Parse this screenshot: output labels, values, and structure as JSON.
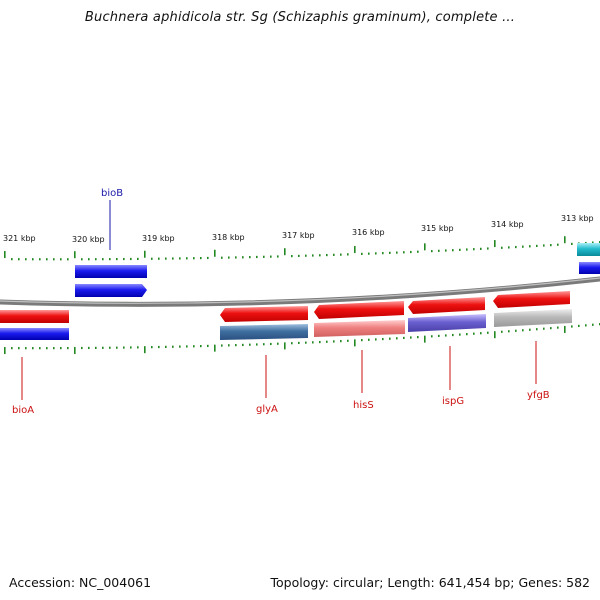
{
  "title": "Buchnera aphidicola str. Sg (Schizaphis graminum), complete ...",
  "footer": {
    "accession": "Accession: NC_004061",
    "summary": "Topology: circular; Length: 641,454 bp; Genes: 582"
  },
  "scale_labels": [
    "321 kbp",
    "320 kbp",
    "319 kbp",
    "318 kbp",
    "317 kbp",
    "316 kbp",
    "315 kbp",
    "314 kbp",
    "313 kbp"
  ],
  "gene_labels": {
    "bioB": "bioB",
    "bioA": "bioA",
    "glyA": "glyA",
    "hisS": "hisS",
    "ispG": "ispG",
    "yfgB": "yfgB"
  },
  "colors": {
    "forward": "#1a1aee",
    "reverse": "#ee1111",
    "tick": "#228822",
    "backbone": "#888888",
    "label_blue": "#1a1aaa",
    "label_red": "#cc1111",
    "cog_steel": "#3f6fa0",
    "cog_pink": "#ef8080",
    "cog_purple": "#6a5fcf",
    "cog_grey": "#b8b8b8",
    "cog_cyan": "#22bbcc"
  }
}
